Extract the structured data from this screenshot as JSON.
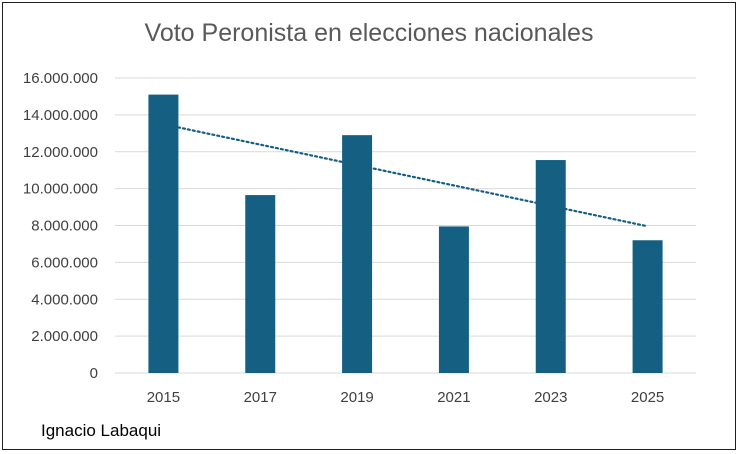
{
  "chart_data": {
    "type": "bar",
    "title": "Voto Peronista en elecciones nacionales",
    "categories": [
      "2015",
      "2017",
      "2019",
      "2021",
      "2023",
      "2025"
    ],
    "series": [
      {
        "name": "Voto Peronista",
        "values": [
          15100000,
          9650000,
          12900000,
          7950000,
          11550000,
          7200000
        ],
        "color": "#156082"
      }
    ],
    "trendline": {
      "type": "linear",
      "style": "dotted",
      "color": "#156082"
    },
    "ylim": [
      0,
      16000000
    ],
    "yticks": [
      0,
      2000000,
      4000000,
      6000000,
      8000000,
      10000000,
      12000000,
      14000000,
      16000000
    ],
    "ytick_labels": [
      "0",
      "2.000.000",
      "4.000.000",
      "6.000.000",
      "8.000.000",
      "10.000.000",
      "12.000.000",
      "14.000.000",
      "16.000.000"
    ],
    "xlabel": "",
    "ylabel": "",
    "grid": true,
    "gridline_color": "#d9d9d9"
  },
  "author": "Ignacio Labaqui"
}
